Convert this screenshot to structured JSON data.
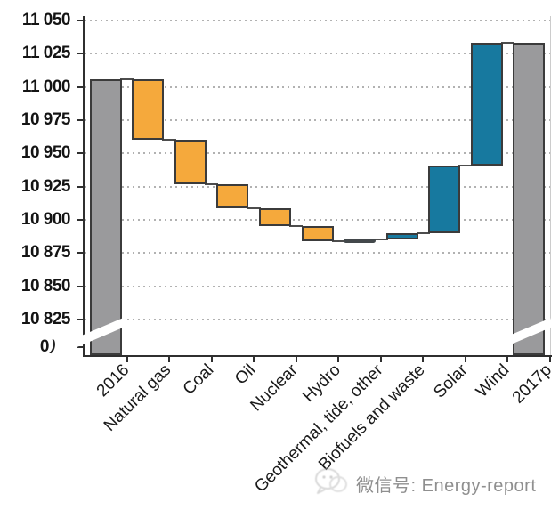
{
  "watermark": {
    "label": "微信号: Energy-report",
    "icon": "wechat-icon"
  },
  "colors": {
    "total_bar": "#9a9a9c",
    "decrease_bar": "#f5a93c",
    "increase_bar": "#17799f",
    "flat_bar": "#43484b",
    "bar_border": "#3b3b3b",
    "grid_dots": "#9e9e9e",
    "axis": "#2f2f2f",
    "connector": "#4d4d4d",
    "plot_right_border": "#cccccc",
    "label_text": "#141414",
    "watermark_text": "#8f8f8f"
  },
  "chart_data": {
    "type": "bar",
    "subtype": "waterfall",
    "grid": "dotted-horizontal",
    "legend": "none",
    "categories": [
      "2016",
      "Natural gas",
      "Coal",
      "Oil",
      "Nuclear",
      "Hydro",
      "Geothermal, tide, other",
      "Biofuels and waste",
      "Solar",
      "Wind",
      "2017p"
    ],
    "bars": [
      {
        "label": "2016",
        "kind": "total",
        "value": 11006
      },
      {
        "label": "Natural gas",
        "kind": "decrease",
        "start": 11006,
        "end": 10960,
        "change": -46
      },
      {
        "label": "Coal",
        "kind": "decrease",
        "start": 10960,
        "end": 10927,
        "change": -33
      },
      {
        "label": "Oil",
        "kind": "decrease",
        "start": 10927,
        "end": 10909,
        "change": -18
      },
      {
        "label": "Nuclear",
        "kind": "decrease",
        "start": 10909,
        "end": 10895,
        "change": -14
      },
      {
        "label": "Hydro",
        "kind": "decrease",
        "start": 10895,
        "end": 10884,
        "change": -11
      },
      {
        "label": "Geothermal, tide, other",
        "kind": "flat",
        "start": 10884,
        "end": 10885,
        "change": 1
      },
      {
        "label": "Biofuels and waste",
        "kind": "increase",
        "start": 10885,
        "end": 10890,
        "change": 5
      },
      {
        "label": "Solar",
        "kind": "increase",
        "start": 10890,
        "end": 10941,
        "change": 51
      },
      {
        "label": "Wind",
        "kind": "increase",
        "start": 10941,
        "end": 11033,
        "change": 92
      },
      {
        "label": "2017p",
        "kind": "total",
        "value": 11033
      }
    ],
    "y_axis": {
      "tick_values": [
        11050,
        11025,
        11000,
        10975,
        10950,
        10925,
        10900,
        10875,
        10850,
        10825,
        0
      ],
      "tick_labels": [
        "11 050",
        "11 025",
        "11 000",
        "10 975",
        "10 950",
        "10 925",
        "10 900",
        "10 875",
        "10 850",
        "10 825",
        "0"
      ],
      "range_top": 11050,
      "range_bottom": 10825,
      "broken_axis": true
    }
  }
}
